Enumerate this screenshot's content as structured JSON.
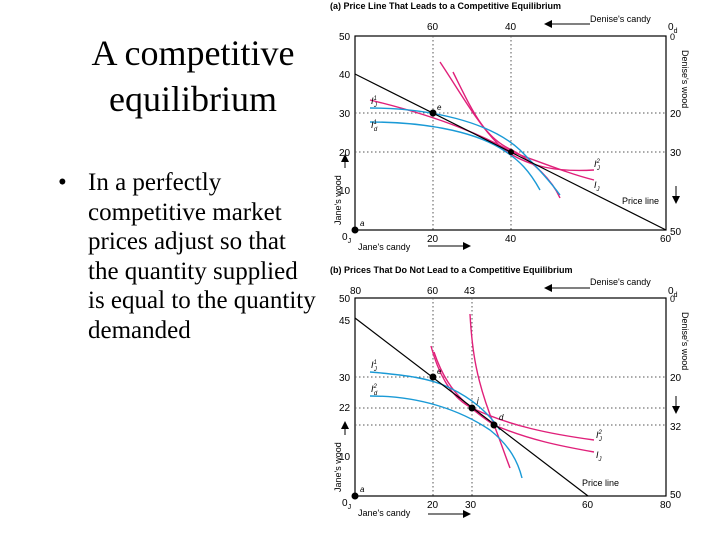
{
  "slide": {
    "title_line1": "A competitive",
    "title_line2": "equilibrium",
    "bullet_marker": "•",
    "bullet_text": "In a perfectly competitive market prices adjust so that the quantity supplied is equal to the quantity demanded"
  },
  "colors": {
    "pink": "#e0207a",
    "blue": "#1a9ad6",
    "black": "#000000",
    "grid": "#555555"
  },
  "panel_a": {
    "title": "(a) Price Line That Leads to a Competitive Equilibrium",
    "top_ticks": [
      "60",
      "40"
    ],
    "left_ticks": [
      "50",
      "40",
      "30",
      "20",
      "10",
      "0"
    ],
    "right_ticks": [
      "0",
      "20",
      "30",
      "50"
    ],
    "bottom_ticks": [
      "20",
      "40",
      "60"
    ],
    "left_axis_label": "Jane's wood",
    "right_axis_label": "Denise's wood",
    "top_axis_label": "Denise's candy",
    "bottom_axis_label": "Jane's candy",
    "origin_j": "0",
    "origin_j_sub": "J",
    "origin_d": "0",
    "origin_d_sub": "d",
    "point_a": "a",
    "point_e": "e",
    "label_ij1": "I",
    "label_ij1_sup": "1",
    "label_ij1_sub": "J",
    "label_id1": "I",
    "label_id1_sup": "1",
    "label_id1_sub": "d",
    "label_i2": "I",
    "label_i2_sup": "2",
    "label_i2_sub": "J",
    "label_i_right": "I",
    "label_i_right_sub": "J",
    "price_line": "Price line"
  },
  "panel_b": {
    "title": "(b) Prices That Do Not Lead to a Competitive Equilibrium",
    "top_ticks": [
      "80",
      "60",
      "43",
      "0"
    ],
    "left_ticks": [
      "50",
      "45",
      "30",
      "22",
      "10",
      "0"
    ],
    "right_ticks": [
      "0",
      "20",
      "32",
      "50"
    ],
    "bottom_ticks": [
      "20",
      "30",
      "60",
      "80"
    ],
    "left_axis_label": "Jane's wood",
    "right_axis_label": "Denise's wood",
    "top_axis_label": "Denise's candy",
    "bottom_axis_label": "Jane's candy",
    "origin_j_sub": "J",
    "origin_d_sub": "d",
    "point_a": "a",
    "point_e": "e",
    "point_j": "j",
    "point_d": "d",
    "label_ij1": "I",
    "label_ij1_sup": "1",
    "label_ij1_sub": "J",
    "label_id1": "I",
    "label_id1_sup": "2",
    "label_id1_sub": "d",
    "label_i2": "I",
    "label_i2_sup": "2",
    "label_i2_sub": "J",
    "label_i_right": "I",
    "label_i_right_sub": "J",
    "price_line": "Price line"
  }
}
